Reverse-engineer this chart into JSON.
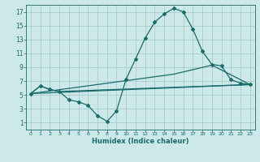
{
  "xlabel": "Humidex (Indice chaleur)",
  "background_color": "#cce8e8",
  "grid_color": "#aacccc",
  "line_color": "#1a6b6b",
  "xlim": [
    -0.5,
    23.5
  ],
  "ylim": [
    0,
    18
  ],
  "xticks": [
    0,
    1,
    2,
    3,
    4,
    5,
    6,
    7,
    8,
    9,
    10,
    11,
    12,
    13,
    14,
    15,
    16,
    17,
    18,
    19,
    20,
    21,
    22,
    23
  ],
  "yticks": [
    1,
    3,
    5,
    7,
    9,
    11,
    13,
    15,
    17
  ],
  "line1_x": [
    0,
    1,
    2,
    3,
    4,
    5,
    6,
    7,
    8,
    9,
    10,
    11,
    12,
    13,
    14,
    15,
    16,
    17,
    18,
    19,
    20,
    21,
    22,
    23
  ],
  "line1_y": [
    5.2,
    6.3,
    5.8,
    5.5,
    4.3,
    4.0,
    3.5,
    2.0,
    1.2,
    2.7,
    7.3,
    10.2,
    13.2,
    15.5,
    16.7,
    17.5,
    17.0,
    14.5,
    11.3,
    9.4,
    9.2,
    7.2,
    6.7,
    6.5
  ],
  "line2_x": [
    0,
    1,
    2,
    3,
    23
  ],
  "line2_y": [
    5.2,
    6.3,
    5.8,
    5.5,
    6.5
  ],
  "line3_x": [
    0,
    15,
    19,
    23
  ],
  "line3_y": [
    5.2,
    8.0,
    9.3,
    6.5
  ],
  "line4_x": [
    0,
    23
  ],
  "line4_y": [
    5.2,
    6.5
  ]
}
